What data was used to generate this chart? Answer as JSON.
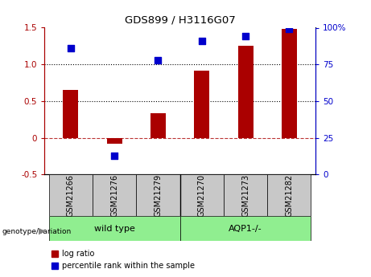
{
  "title": "GDS899 / H3116G07",
  "samples": [
    "GSM21266",
    "GSM21276",
    "GSM21279",
    "GSM21270",
    "GSM21273",
    "GSM21282"
  ],
  "log_ratio": [
    0.65,
    -0.08,
    0.33,
    0.92,
    1.25,
    1.48
  ],
  "percentile_rank": [
    86,
    13,
    78,
    91,
    94,
    99
  ],
  "bar_color": "#AA0000",
  "dot_color": "#0000CC",
  "left_ylim": [
    -0.5,
    1.5
  ],
  "right_ylim": [
    0,
    100
  ],
  "left_yticks": [
    -0.5,
    0,
    0.5,
    1.0,
    1.5
  ],
  "right_yticks": [
    0,
    25,
    50,
    75,
    100
  ],
  "hlines": [
    0.5,
    1.0
  ],
  "bar_width": 0.35,
  "dot_size": 40,
  "legend_log_ratio": "log ratio",
  "legend_percentile": "percentile rank within the sample",
  "genotype_label": "genotype/variation",
  "wt_label": "wild type",
  "aqp_label": "AQP1-/-",
  "green_color": "#90EE90",
  "gray_color": "#C8C8C8"
}
